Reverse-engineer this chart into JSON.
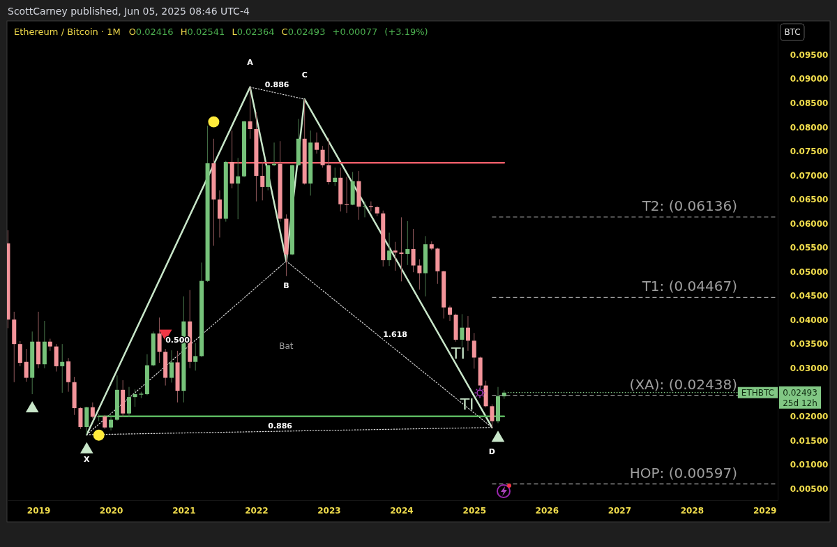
{
  "chart_data": {
    "type": "candlestick",
    "title": "Ethereum / Bitcoin · 1M",
    "subtitle": "O0.02416 H0.02541 L0.02364 C0.02493 +0.00077 (+3.19%)",
    "x": [
      "2018-08",
      "2018-09",
      "2018-10",
      "2018-11",
      "2018-12",
      "2019-01",
      "2019-02",
      "2019-03",
      "2019-04",
      "2019-05",
      "2019-06",
      "2019-07",
      "2019-08",
      "2019-09",
      "2019-10",
      "2019-11",
      "2019-12",
      "2020-01",
      "2020-02",
      "2020-03",
      "2020-04",
      "2020-05",
      "2020-06",
      "2020-07",
      "2020-08",
      "2020-09",
      "2020-10",
      "2020-11",
      "2020-12",
      "2021-01",
      "2021-02",
      "2021-03",
      "2021-04",
      "2021-05",
      "2021-06",
      "2021-07",
      "2021-08",
      "2021-09",
      "2021-10",
      "2021-11",
      "2021-12",
      "2022-01",
      "2022-02",
      "2022-03",
      "2022-04",
      "2022-05",
      "2022-06",
      "2022-07",
      "2022-08",
      "2022-09",
      "2022-10",
      "2022-11",
      "2022-12",
      "2023-01",
      "2023-02",
      "2023-03",
      "2023-04",
      "2023-05",
      "2023-06",
      "2023-07",
      "2023-08",
      "2023-09",
      "2023-10",
      "2023-11",
      "2023-12",
      "2024-01",
      "2024-02",
      "2024-03",
      "2024-04",
      "2024-05",
      "2024-06",
      "2024-07",
      "2024-08",
      "2024-09",
      "2024-10",
      "2024-11",
      "2024-12",
      "2025-01",
      "2025-02",
      "2025-03",
      "2025-04",
      "2025-05",
      "2025-06"
    ],
    "ohlc": [
      [
        0.0559,
        0.0586,
        0.0383,
        0.0401
      ],
      [
        0.0401,
        0.0417,
        0.0271,
        0.035
      ],
      [
        0.035,
        0.0356,
        0.0304,
        0.0311
      ],
      [
        0.0313,
        0.034,
        0.0272,
        0.028
      ],
      [
        0.028,
        0.0376,
        0.0246,
        0.0355
      ],
      [
        0.0355,
        0.0417,
        0.03,
        0.0308
      ],
      [
        0.0308,
        0.0398,
        0.03,
        0.0355
      ],
      [
        0.0355,
        0.0361,
        0.0336,
        0.0345
      ],
      [
        0.0345,
        0.035,
        0.0293,
        0.0304
      ],
      [
        0.0304,
        0.035,
        0.0249,
        0.0313
      ],
      [
        0.0314,
        0.0321,
        0.0251,
        0.0271
      ],
      [
        0.0271,
        0.0282,
        0.0203,
        0.0217
      ],
      [
        0.0217,
        0.0219,
        0.0174,
        0.0178
      ],
      [
        0.0178,
        0.022,
        0.0162,
        0.0219
      ],
      [
        0.0219,
        0.0229,
        0.0196,
        0.0199
      ],
      [
        0.0199,
        0.0205,
        0.019,
        0.02
      ],
      [
        0.02,
        0.0203,
        0.0174,
        0.0177
      ],
      [
        0.0177,
        0.02,
        0.0171,
        0.0193
      ],
      [
        0.0193,
        0.0285,
        0.0191,
        0.0255
      ],
      [
        0.0255,
        0.0275,
        0.0199,
        0.0206
      ],
      [
        0.0206,
        0.0261,
        0.0199,
        0.024
      ],
      [
        0.024,
        0.0256,
        0.022,
        0.0246
      ],
      [
        0.0245,
        0.0251,
        0.0238,
        0.0247
      ],
      [
        0.0246,
        0.0329,
        0.0244,
        0.0306
      ],
      [
        0.0306,
        0.0376,
        0.0304,
        0.0372
      ],
      [
        0.0372,
        0.0405,
        0.0311,
        0.0334
      ],
      [
        0.0334,
        0.034,
        0.0264,
        0.028
      ],
      [
        0.028,
        0.0337,
        0.027,
        0.0312
      ],
      [
        0.0312,
        0.0336,
        0.0229,
        0.0253
      ],
      [
        0.0253,
        0.0449,
        0.0229,
        0.0397
      ],
      [
        0.0397,
        0.0462,
        0.03,
        0.0313
      ],
      [
        0.0313,
        0.0352,
        0.0295,
        0.0325
      ],
      [
        0.0325,
        0.0519,
        0.0323,
        0.0481
      ],
      [
        0.0481,
        0.0803,
        0.0479,
        0.0725
      ],
      [
        0.0725,
        0.0776,
        0.0554,
        0.065
      ],
      [
        0.065,
        0.0669,
        0.0571,
        0.061
      ],
      [
        0.061,
        0.073,
        0.0604,
        0.0728
      ],
      [
        0.0728,
        0.0793,
        0.0673,
        0.0683
      ],
      [
        0.0683,
        0.0736,
        0.0609,
        0.0698
      ],
      [
        0.0698,
        0.0813,
        0.0696,
        0.0812
      ],
      [
        0.0812,
        0.0883,
        0.0776,
        0.0796
      ],
      [
        0.0796,
        0.0831,
        0.0646,
        0.0699
      ],
      [
        0.0699,
        0.0728,
        0.0648,
        0.0676
      ],
      [
        0.0676,
        0.0722,
        0.0669,
        0.0721
      ],
      [
        0.0721,
        0.0768,
        0.0719,
        0.0724
      ],
      [
        0.0724,
        0.0771,
        0.0604,
        0.061
      ],
      [
        0.061,
        0.0619,
        0.0491,
        0.0536
      ],
      [
        0.0536,
        0.0722,
        0.0534,
        0.0721
      ],
      [
        0.0721,
        0.0817,
        0.0719,
        0.0776
      ],
      [
        0.0776,
        0.0858,
        0.0681,
        0.0683
      ],
      [
        0.0683,
        0.0793,
        0.0658,
        0.0768
      ],
      [
        0.0768,
        0.0789,
        0.0745,
        0.0753
      ],
      [
        0.0753,
        0.0761,
        0.0716,
        0.0721
      ],
      [
        0.0721,
        0.0778,
        0.0681,
        0.0686
      ],
      [
        0.0686,
        0.0716,
        0.0678,
        0.0695
      ],
      [
        0.0695,
        0.0716,
        0.0625,
        0.064
      ],
      [
        0.064,
        0.0697,
        0.0622,
        0.0639
      ],
      [
        0.0639,
        0.0707,
        0.0638,
        0.0688
      ],
      [
        0.0688,
        0.0709,
        0.0608,
        0.0635
      ],
      [
        0.0635,
        0.0646,
        0.0613,
        0.0636
      ],
      [
        0.0636,
        0.0646,
        0.0625,
        0.0634
      ],
      [
        0.0634,
        0.0637,
        0.0615,
        0.0621
      ],
      [
        0.0621,
        0.0627,
        0.0511,
        0.0524
      ],
      [
        0.0524,
        0.0581,
        0.0512,
        0.0544
      ],
      [
        0.0544,
        0.0562,
        0.0502,
        0.054
      ],
      [
        0.054,
        0.0613,
        0.048,
        0.0537
      ],
      [
        0.0537,
        0.0605,
        0.0514,
        0.0547
      ],
      [
        0.0547,
        0.0589,
        0.0499,
        0.0513
      ],
      [
        0.0513,
        0.0526,
        0.0463,
        0.0497
      ],
      [
        0.0497,
        0.0574,
        0.0449,
        0.0557
      ],
      [
        0.0557,
        0.0563,
        0.0545,
        0.0548
      ],
      [
        0.0548,
        0.055,
        0.0475,
        0.0501
      ],
      [
        0.0501,
        0.0502,
        0.0403,
        0.0426
      ],
      [
        0.0426,
        0.043,
        0.0398,
        0.0411
      ],
      [
        0.0411,
        0.0413,
        0.0355,
        0.0359
      ],
      [
        0.0359,
        0.0412,
        0.0345,
        0.0384
      ],
      [
        0.0384,
        0.0408,
        0.0336,
        0.0357
      ],
      [
        0.0357,
        0.0373,
        0.0299,
        0.0322
      ],
      [
        0.0322,
        0.0324,
        0.0258,
        0.0264
      ],
      [
        0.0264,
        0.0274,
        0.0219,
        0.0221
      ],
      [
        0.0221,
        0.0225,
        0.0176,
        0.019
      ],
      [
        0.019,
        0.0261,
        0.0186,
        0.0242
      ],
      [
        0.02416,
        0.02541,
        0.02364,
        0.02493
      ]
    ],
    "colors": [
      "#f3949a",
      "#f3949a",
      "#f3949a",
      "#f3949a",
      "#76c27a",
      "#f3949a",
      "#76c27a",
      "#f3949a",
      "#f3949a",
      "#76c27a",
      "#f3949a",
      "#f3949a",
      "#f3949a",
      "#76c27a",
      "#f3949a",
      "#76c27a",
      "#f3949a",
      "#76c27a",
      "#76c27a",
      "#f3949a",
      "#76c27a",
      "#76c27a",
      "#76c27a",
      "#76c27a",
      "#76c27a",
      "#f3949a",
      "#f3949a",
      "#76c27a",
      "#f3949a",
      "#76c27a",
      "#f3949a",
      "#76c27a",
      "#76c27a",
      "#76c27a",
      "#f3949a",
      "#f3949a",
      "#76c27a",
      "#f3949a",
      "#76c27a",
      "#76c27a",
      "#f3949a",
      "#f3949a",
      "#f3949a",
      "#76c27a",
      "#76c27a",
      "#f3949a",
      "#f3949a",
      "#76c27a",
      "#76c27a",
      "#f3949a",
      "#76c27a",
      "#f3949a",
      "#f3949a",
      "#f3949a",
      "#76c27a",
      "#f3949a",
      "#f3949a",
      "#76c27a",
      "#f3949a",
      "#76c27a",
      "#f3949a",
      "#f3949a",
      "#f3949a",
      "#76c27a",
      "#f3949a",
      "#f3949a",
      "#76c27a",
      "#f3949a",
      "#f3949a",
      "#76c27a",
      "#f3949a",
      "#f3949a",
      "#f3949a",
      "#f3949a",
      "#f3949a",
      "#76c27a",
      "#f3949a",
      "#f3949a",
      "#f3949a",
      "#f3949a",
      "#f3949a",
      "#76c27a",
      "#76c27a"
    ],
    "series": [
      {
        "type": "line",
        "color": "#c8e6c9",
        "x": [
          "2019-09",
          "2021-12",
          "2022-06",
          "2022-09",
          "2025-04"
        ],
        "values": [
          0.0162,
          0.0883,
          0.0522,
          0.0858,
          0.0177
        ]
      },
      {
        "type": "line",
        "line_style": "dotted",
        "color": "#d9d9d9",
        "x": [
          "2019-09",
          "2022-06"
        ],
        "values": [
          0.0162,
          0.0522
        ]
      },
      {
        "type": "line",
        "line_style": "dotted",
        "color": "#d9d9d9",
        "x": [
          "2021-12",
          "2022-09"
        ],
        "values": [
          0.0883,
          0.0858
        ]
      },
      {
        "type": "line",
        "line_style": "dotted",
        "color": "#d9d9d9",
        "x": [
          "2022-06",
          "2025-04"
        ],
        "values": [
          0.0522,
          0.0177
        ]
      },
      {
        "type": "line",
        "line_style": "dotted",
        "color": "#d9d9d9",
        "x": [
          "2019-09",
          "2025-04"
        ],
        "values": [
          0.0162,
          0.0177
        ]
      },
      {
        "type": "line",
        "color": "#f05d68",
        "x": [
          "2021-08-15",
          "2025-06"
        ],
        "values": [
          0.0726,
          0.0726
        ]
      },
      {
        "type": "line",
        "color": "#5cb860",
        "x": [
          "2019-11",
          "2025-06"
        ],
        "values": [
          0.02,
          0.02
        ]
      },
      {
        "type": "scatter",
        "marker": "circle",
        "color": "#ffeb3b",
        "x": [
          "2019-11",
          "2021-06"
        ],
        "values": [
          0.0161,
          0.0811
        ]
      },
      {
        "type": "scatter",
        "marker": "triangle",
        "color": "#c8e6c9",
        "x": [
          "2018-12",
          "2019-09",
          "2025-05"
        ],
        "values": [
          0.0216,
          0.0131,
          0.0155
        ]
      },
      {
        "type": "scatter",
        "marker": "triangle",
        "color": "#f23645",
        "x": [
          "2020-10"
        ],
        "values": [
          0.0372
        ]
      }
    ],
    "xlim": [
      "2018-07-27",
      "2029-03-08"
    ],
    "xticks": [
      "2019",
      "2020",
      "2021",
      "2022",
      "2023",
      "2024",
      "2025",
      "2026",
      "2027",
      "2028",
      "2029"
    ],
    "ylim": [
      0.0026,
      0.1016
    ],
    "yticks": [
      {
        "value": 0.005,
        "label": "0.00500"
      },
      {
        "value": 0.01,
        "label": "0.01000"
      },
      {
        "value": 0.015,
        "label": "0.01500"
      },
      {
        "value": 0.02,
        "label": "0.02000"
      },
      {
        "value": 0.03,
        "label": "0.03000"
      },
      {
        "value": 0.035,
        "label": "0.03500"
      },
      {
        "value": 0.04,
        "label": "0.04000"
      },
      {
        "value": 0.045,
        "label": "0.04500"
      },
      {
        "value": 0.05,
        "label": "0.05000"
      },
      {
        "value": 0.055,
        "label": "0.05500"
      },
      {
        "value": 0.06,
        "label": "0.06000"
      },
      {
        "value": 0.065,
        "label": "0.06500"
      },
      {
        "value": 0.07,
        "label": "0.07000"
      },
      {
        "value": 0.075,
        "label": "0.07500"
      },
      {
        "value": 0.08,
        "label": "0.08000"
      },
      {
        "value": 0.085,
        "label": "0.08500"
      },
      {
        "value": 0.09,
        "label": "0.09000"
      },
      {
        "value": 0.095,
        "label": "0.09500"
      }
    ],
    "ref_lines": [
      {
        "axis": "y",
        "value": 0.06136,
        "label": "T2: (0.06136)",
        "color": "#9e9e9e",
        "line_style": "dashed"
      },
      {
        "axis": "y",
        "value": 0.04467,
        "label": "T1: (0.04467)",
        "color": "#9e9e9e",
        "line_style": "dashed"
      },
      {
        "axis": "y",
        "value": 0.02438,
        "label": "(XA): (0.02438)",
        "color": "#9e9e9e",
        "line_style": "dashed"
      },
      {
        "axis": "y",
        "value": 0.00597,
        "label": "HOP: (0.00597)",
        "color": "#9e9e9e",
        "line_style": "dashed"
      },
      {
        "axis": "y",
        "value": 0.02493,
        "label": "ETHBTC",
        "color": "#81c784",
        "line_style": "dotted"
      }
    ],
    "annotations": [
      "ScottCarney published, Jun 05, 2025 08:46 UTC-4",
      "BTC",
      "0.02493",
      "25d 12h",
      "Bat",
      "TI",
      "TI",
      {
        "text": "X",
        "x": "2019-09",
        "y": 0.0162
      },
      {
        "text": "A",
        "x": "2021-12",
        "y": 0.0883
      },
      {
        "text": "B",
        "x": "2022-06",
        "y": 0.0522
      },
      {
        "text": "C",
        "x": "2022-09",
        "y": 0.0858
      },
      {
        "text": "D",
        "x": "2025-04",
        "y": 0.0177
      },
      {
        "text": "0.886",
        "x": "2022-04-15",
        "y": 0.0871
      },
      {
        "text": "0.500",
        "x": "2020-12",
        "y": 0.0326
      },
      {
        "text": "1.618",
        "x": "2023-12",
        "y": 0.0339
      },
      {
        "text": "0.886",
        "x": "2022-05",
        "y": 0.0169
      }
    ]
  }
}
